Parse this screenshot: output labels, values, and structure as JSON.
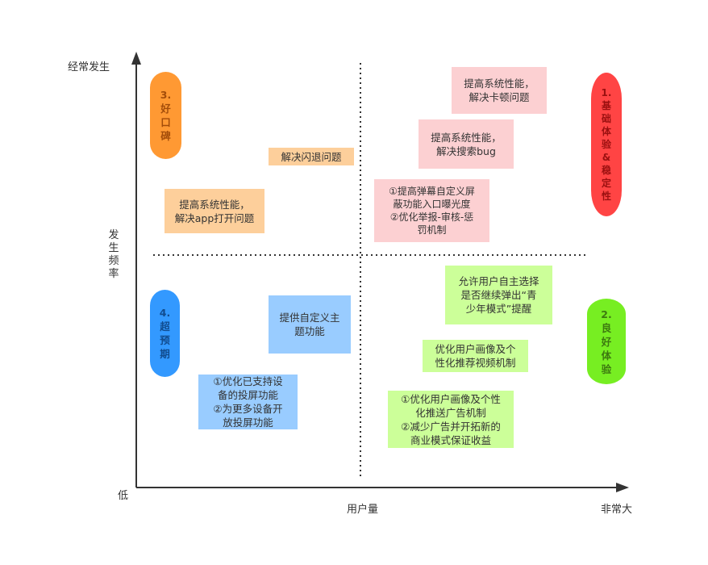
{
  "axes": {
    "y_top": "经常发生",
    "y_title": "发生频率",
    "origin": "低",
    "x_title": "用户量",
    "x_right": "非常大"
  },
  "badges": {
    "b1": {
      "text": "1.\n基\n础\n体\n验\n&\n稳\n定\n性",
      "color": "#ff4444"
    },
    "b2": {
      "text": "2.\n良\n好\n体\n验",
      "color": "#77ee22"
    },
    "b3": {
      "text": "3.\n好\n口\n碑",
      "color": "#ff9933"
    },
    "b4": {
      "text": "4.\n超\n预\n期",
      "color": "#3399ff"
    }
  },
  "boxes": {
    "q1_a": "提高系统性能，\n解决卡顿问题",
    "q1_b": "提高系统性能，\n解决搜索bug",
    "q1_c": "①提高弹幕自定义屏\n蔽功能入口曝光度\n②优化举报-审核-惩\n罚机制",
    "q2_a": "解决闪退问题",
    "q2_b": "提高系统性能，\n解决app打开问题",
    "q3_a": "提供自定义主\n题功能",
    "q3_b": "①优化已支持设\n备的投屏功能\n②为更多设备开\n放投屏功能",
    "q4_a": "允许用户自主选择\n是否继续弹出“青\n少年模式”提醒",
    "q4_b": "优化用户画像及个\n性化推荐视频机制",
    "q4_c": "①优化用户画像及个性\n化推送广告机制\n②减少广告并开拓新的\n商业模式保证收益"
  }
}
